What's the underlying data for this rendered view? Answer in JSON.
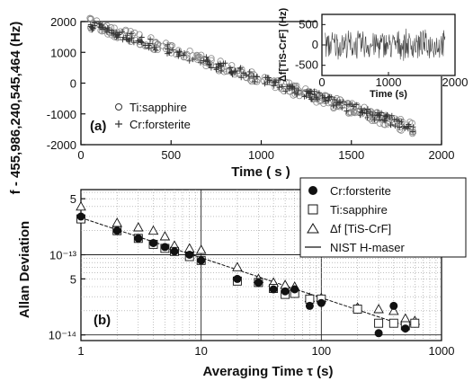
{
  "chart_data": [
    {
      "type": "scatter",
      "panel_label": "(a)",
      "xlabel": "Time ( s )",
      "ylabel": "f - 455,986,240,545,464 (Hz)",
      "xlim": [
        0,
        2000
      ],
      "ylim": [
        -2000,
        2000
      ],
      "xticks": [
        "0",
        "500",
        "1000",
        "1500",
        "2000"
      ],
      "yticks": [
        "2000",
        "1000",
        "0",
        "-1000",
        "-2000"
      ],
      "legend_position": "bottom-left",
      "series": [
        {
          "name": "Ti:sapphire",
          "marker": "open-circle",
          "trend": {
            "x": [
              50,
              1850
            ],
            "y": [
              1950,
              -1500
            ]
          }
        },
        {
          "name": "Cr:forsterite",
          "marker": "plus",
          "trend": {
            "x": [
              50,
              1850
            ],
            "y": [
              1900,
              -1450
            ]
          }
        }
      ],
      "inset": {
        "type": "line",
        "ylabel": "Δf[TiS-CrF] (Hz)",
        "xlabel": "Time (s)",
        "xlim": [
          0,
          2000
        ],
        "ylim": [
          -750,
          750
        ],
        "xticks": [
          "0",
          "1000",
          "2000"
        ],
        "yticks": [
          "500",
          "0",
          "-500"
        ],
        "noise_amplitude": 400
      }
    },
    {
      "type": "scatter",
      "panel_label": "(b)",
      "xlabel": "Averaging Time τ (s)",
      "ylabel": "Allan Deviation",
      "xscale": "log",
      "yscale": "log",
      "xlim": [
        1,
        1000
      ],
      "ylim": [
        8.5e-15,
        6.5e-13
      ],
      "xticks": [
        "1",
        "10",
        "100",
        "1000"
      ],
      "yticks": [
        "5",
        "10⁻¹³",
        "5",
        "10⁻¹⁴"
      ],
      "legend_position": "top-right",
      "series": [
        {
          "name": "Cr:forsterite",
          "marker": "filled-circle",
          "x": [
            1,
            2,
            3,
            4,
            5,
            6,
            8,
            10,
            20,
            30,
            40,
            50,
            60,
            80,
            100,
            300,
            400,
            500
          ],
          "y": [
            3e-13,
            2e-13,
            1.6e-13,
            1.4e-13,
            1.25e-13,
            1.1e-13,
            1e-13,
            8.5e-14,
            5e-14,
            4.5e-14,
            3.7e-14,
            3.5e-14,
            3.7e-14,
            2.3e-14,
            2.5e-14,
            1.05e-14,
            2.3e-14,
            1.2e-14
          ]
        },
        {
          "name": "Ti:sapphire",
          "marker": "open-square",
          "x": [
            1,
            2,
            3,
            4,
            5,
            6,
            8,
            10,
            20,
            30,
            40,
            50,
            60,
            80,
            100,
            200,
            300,
            400,
            500,
            600
          ],
          "y": [
            2.8e-13,
            2e-13,
            1.6e-13,
            1.35e-13,
            1.2e-13,
            1.1e-13,
            9.5e-14,
            8.5e-14,
            4.7e-14,
            4.5e-14,
            3.8e-14,
            3.2e-14,
            3.3e-14,
            2.8e-14,
            2.8e-14,
            2.1e-14,
            1.4e-14,
            1.4e-14,
            1.3e-14,
            1.4e-14
          ]
        },
        {
          "name": "Δf [TiS-CrF]",
          "marker": "open-triangle",
          "x": [
            1,
            2,
            3,
            4,
            5,
            6,
            8,
            10,
            20,
            30,
            40,
            50,
            60,
            80,
            100,
            200,
            300,
            400,
            500,
            600
          ],
          "y": [
            4e-13,
            2.5e-13,
            2.2e-13,
            2e-13,
            1.7e-13,
            1.3e-13,
            1.2e-13,
            1.15e-13,
            7e-14,
            5e-14,
            4.5e-14,
            4.2e-14,
            4e-14,
            2.9e-14,
            2.9e-14,
            2.2e-14,
            2.1e-14,
            2e-14,
            1.6e-14,
            1.5e-14
          ]
        },
        {
          "name": "NIST H-maser",
          "marker": "line",
          "x": [
            1,
            500
          ],
          "y": [
            2.9e-13,
            1.3e-14
          ]
        }
      ]
    }
  ]
}
